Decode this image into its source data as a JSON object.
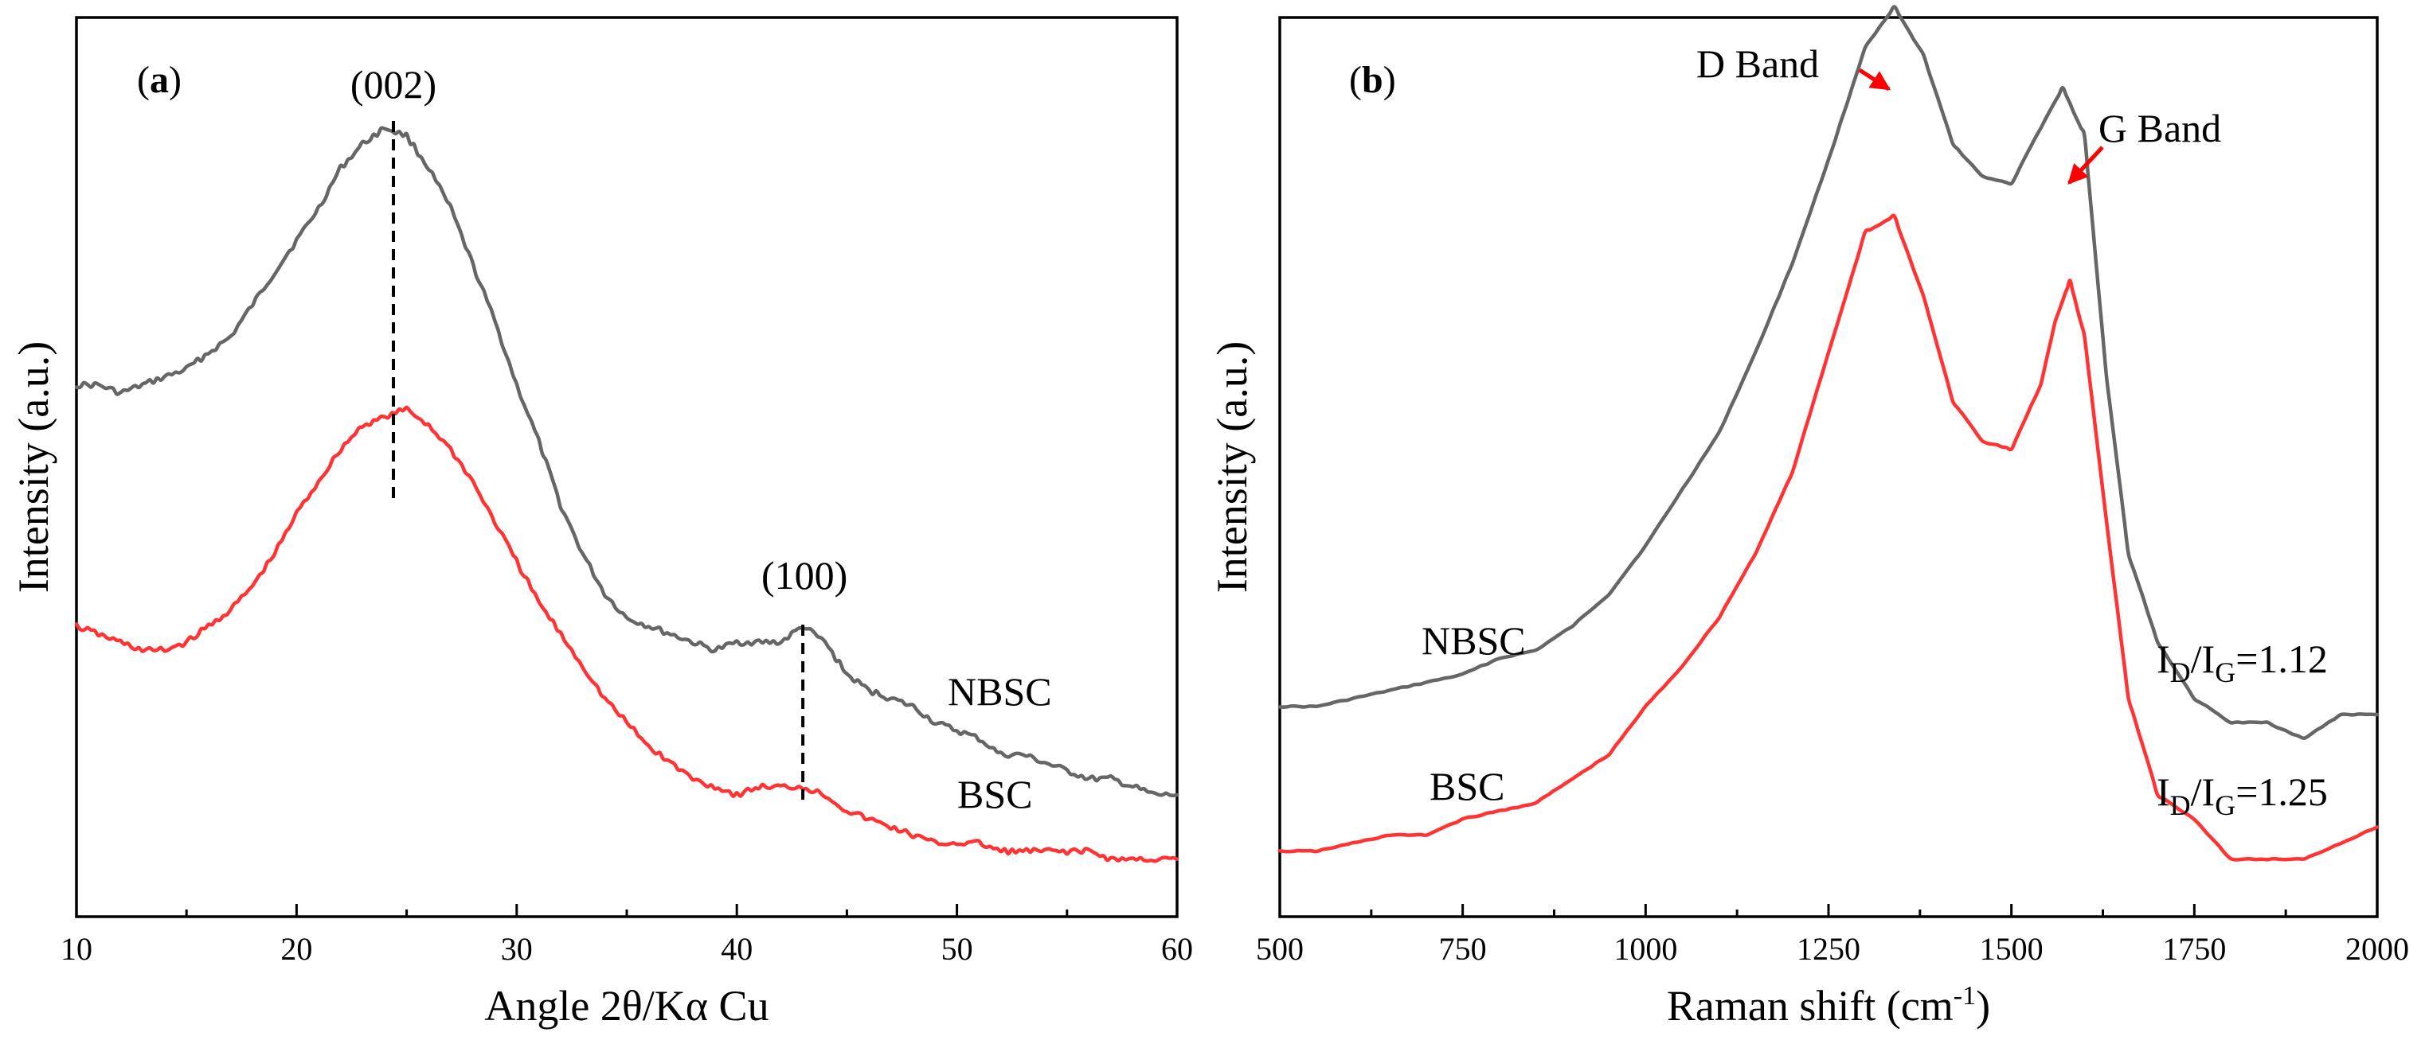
{
  "chart_data": [
    {
      "type": "line",
      "panel": "(a)",
      "panel_letter": "a",
      "xlabel": "Angle 2θ/Kα Cu",
      "ylabel": "Intensity (a.u.)",
      "xlim": [
        10,
        60
      ],
      "ylim": [
        0,
        100
      ],
      "xticks": [
        10,
        20,
        30,
        40,
        50,
        60
      ],
      "annotations": [
        {
          "text": "(002)",
          "x": 24.4
        },
        {
          "text": "(100)",
          "x": 43
        }
      ],
      "series": [
        {
          "name": "NBSC",
          "color": "#666666",
          "x": [
            10,
            11,
            12,
            13,
            14,
            15,
            16,
            17,
            18,
            19,
            20,
            21,
            22,
            23,
            24,
            25,
            26,
            27,
            28,
            29,
            30,
            31,
            32,
            33,
            34,
            35,
            36,
            37,
            38,
            39,
            40,
            41,
            42,
            43,
            44,
            45,
            46,
            47,
            48,
            49,
            50,
            51,
            52,
            53,
            54,
            55,
            56,
            57,
            58,
            59,
            60
          ],
          "values": [
            61,
            61,
            60,
            61,
            62,
            63,
            65,
            67,
            71,
            75,
            79,
            83,
            88,
            91,
            93,
            92,
            88,
            83,
            76,
            69,
            61,
            54,
            46,
            40,
            35,
            32,
            31,
            30,
            29,
            28,
            29,
            29,
            29,
            31,
            29,
            25,
            23,
            22,
            21,
            19,
            18,
            17,
            15,
            15,
            14,
            13,
            12,
            12,
            11,
            10,
            10
          ]
        },
        {
          "name": "BSC",
          "color": "#ff3333",
          "x": [
            10,
            11,
            12,
            13,
            14,
            15,
            16,
            17,
            18,
            19,
            20,
            21,
            22,
            23,
            24,
            25,
            26,
            27,
            28,
            29,
            30,
            31,
            32,
            33,
            34,
            35,
            36,
            37,
            38,
            39,
            40,
            41,
            42,
            43,
            44,
            45,
            46,
            47,
            48,
            49,
            50,
            51,
            52,
            53,
            54,
            55,
            56,
            57,
            58,
            59,
            60
          ],
          "values": [
            31,
            30,
            29,
            28,
            28,
            29,
            31,
            33,
            36,
            40,
            45,
            49,
            53,
            56,
            57,
            58,
            56,
            53,
            49,
            44,
            39,
            34,
            30,
            26,
            22,
            19,
            16,
            14,
            12,
            11,
            10,
            11,
            11,
            11,
            10,
            8,
            7,
            6,
            5,
            4,
            4,
            4,
            3,
            3,
            3,
            3,
            3,
            2,
            2,
            2,
            2
          ]
        }
      ]
    },
    {
      "type": "line",
      "panel": "(b)",
      "panel_letter": "b",
      "xlabel": "Raman shift (cm",
      "xlabel_sup": "-1",
      "xlabel_close": ")",
      "ylabel": "Intensity (a.u.)",
      "xlim": [
        500,
        2000
      ],
      "ylim": [
        0,
        100
      ],
      "xticks": [
        500,
        750,
        1000,
        1250,
        1500,
        1750,
        2000
      ],
      "annotations": [
        {
          "text": "D Band",
          "x": 1340
        },
        {
          "text": "G Band",
          "x": 1570
        },
        {
          "text": "I",
          "sub": "D",
          "mid": "/I",
          "sub2": "G",
          "value": "=1.12"
        },
        {
          "text": "I",
          "sub": "D",
          "mid": "/I",
          "sub2": "G",
          "value": "=1.25"
        }
      ],
      "series": [
        {
          "name": "NBSC",
          "color": "#666666",
          "x": [
            500,
            550,
            600,
            650,
            700,
            750,
            800,
            850,
            900,
            950,
            1000,
            1050,
            1100,
            1150,
            1200,
            1250,
            1300,
            1340,
            1380,
            1420,
            1460,
            1500,
            1540,
            1570,
            1600,
            1630,
            1660,
            1700,
            1750,
            1800,
            1850,
            1900,
            1950,
            2000
          ],
          "values": [
            21,
            21,
            22,
            23,
            24,
            25,
            27,
            28,
            31,
            35,
            41,
            48,
            55,
            65,
            76,
            89,
            103,
            108,
            102,
            91,
            87,
            86,
            93,
            98,
            92,
            62,
            40,
            29,
            22,
            19,
            19,
            17,
            20,
            20
          ]
        },
        {
          "name": "BSC",
          "color": "#ff3333",
          "x": [
            500,
            550,
            600,
            650,
            700,
            750,
            800,
            850,
            900,
            950,
            1000,
            1050,
            1100,
            1150,
            1200,
            1250,
            1300,
            1340,
            1380,
            1420,
            1460,
            1500,
            1540,
            1560,
            1580,
            1600,
            1630,
            1660,
            1700,
            1750,
            1800,
            1850,
            1900,
            1950,
            2000
          ],
          "values": [
            3,
            3,
            4,
            5,
            5,
            7,
            8,
            9,
            12,
            15,
            21,
            26,
            32,
            40,
            50,
            65,
            80,
            82,
            72,
            59,
            54,
            53,
            61,
            69,
            74,
            67,
            44,
            22,
            10,
            7,
            2,
            2,
            2,
            4,
            6
          ]
        }
      ]
    }
  ]
}
